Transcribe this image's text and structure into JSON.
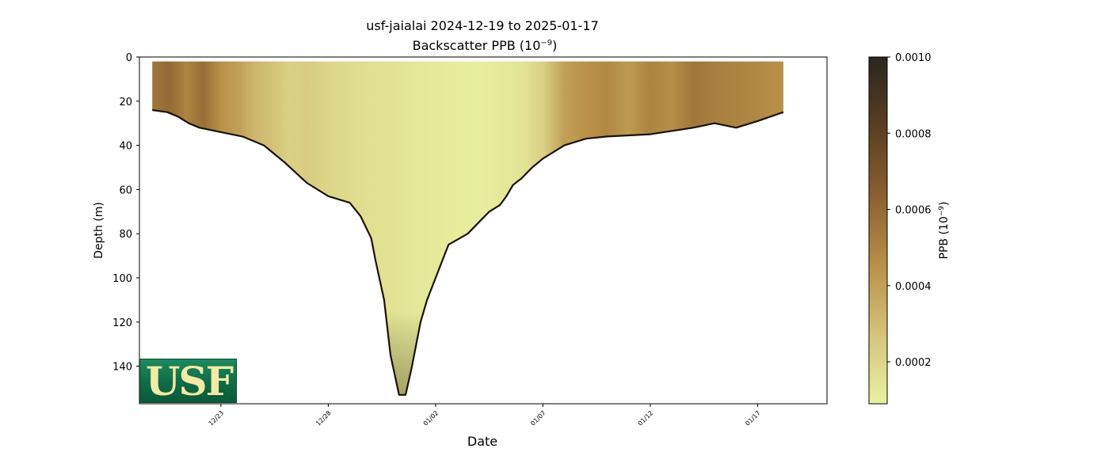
{
  "chart_data": {
    "type": "heatmap",
    "title": "usf-jaialai 2024-12-19 to 2025-01-17",
    "subtitle_prefix": "Backscatter PPB (10",
    "subtitle_exp": "−9",
    "subtitle_suffix": ")",
    "xlabel": "Date",
    "ylabel": "Depth (m)",
    "x_ticks": [
      "12/23",
      "12/28",
      "01/02",
      "01/07",
      "01/12",
      "01/17"
    ],
    "y_ticks": [
      0,
      20,
      40,
      60,
      80,
      100,
      120,
      140
    ],
    "ylim": [
      157,
      0
    ],
    "colorbar": {
      "label_prefix": "PPB (10",
      "label_exp": "−9",
      "label_suffix": ")",
      "ticks": [
        "0.0002",
        "0.0004",
        "0.0006",
        "0.0008",
        "0.0010"
      ],
      "tick_values": [
        0.0002,
        0.0004,
        0.0006,
        0.0008,
        0.001
      ],
      "range": [
        9e-05,
        0.001
      ],
      "colors": [
        "#e8f2a0",
        "#d4c47a",
        "#b89048",
        "#8a6030",
        "#5a3e22",
        "#2a2620"
      ]
    },
    "data_extent": {
      "x_start_day": 0.8,
      "x_end_day": 30.2,
      "surface_depth_m": 2
    },
    "profile_max_depth": {
      "day": [
        0.8,
        1.5,
        2.0,
        2.5,
        3.0,
        4.0,
        5.0,
        6.0,
        7.0,
        8.0,
        9.0,
        10.0,
        10.5,
        11.0,
        11.2,
        11.6,
        11.9,
        12.3,
        12.6,
        12.9,
        13.3,
        13.6,
        14.0,
        14.6,
        15.5,
        16.0,
        16.5,
        17.0,
        17.3,
        17.6,
        18.0,
        18.5,
        19.0,
        20.0,
        21.0,
        22.0,
        24.0,
        26.0,
        27.0,
        28.0,
        29.0,
        30.2
      ],
      "depth": [
        24,
        25,
        27,
        30,
        32,
        34,
        36,
        40,
        48,
        57,
        63,
        66,
        72,
        82,
        92,
        110,
        135,
        153,
        153,
        140,
        120,
        110,
        100,
        85,
        80,
        75,
        70,
        67,
        63,
        58,
        55,
        50,
        46,
        40,
        37,
        36,
        35,
        32,
        30,
        32,
        29,
        25
      ]
    },
    "vertical_bands": {
      "day": [
        0.8,
        1.6,
        2.4,
        3.2,
        4.0,
        4.8,
        5.6,
        6.4,
        7.2,
        8.0,
        9.0,
        10.0,
        11.0,
        12.0,
        13.0,
        14.0,
        15.0,
        16.0,
        17.0,
        18.0,
        19.0,
        20.0,
        21.0,
        22.0,
        23.0,
        24.0,
        25.0,
        26.0,
        27.0,
        28.0,
        29.0,
        30.2
      ],
      "ppb": [
        0.00055,
        0.0006,
        0.0005,
        0.00058,
        0.00045,
        0.0004,
        0.00032,
        0.00028,
        0.00022,
        0.00024,
        0.0002,
        0.00018,
        0.00016,
        0.00015,
        0.00013,
        0.00012,
        0.00011,
        0.0001,
        0.00012,
        0.00014,
        0.00022,
        0.0004,
        0.00045,
        0.00048,
        0.00042,
        0.0005,
        0.00046,
        0.00055,
        0.00052,
        0.0005,
        0.00048,
        0.00045
      ]
    },
    "grid": false
  },
  "logo": {
    "text": "USF"
  }
}
